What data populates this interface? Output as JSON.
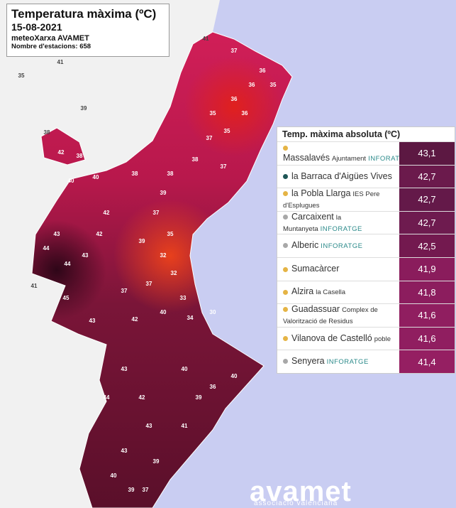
{
  "header": {
    "title": "Temperatura màxima (ºC)",
    "date": "15-08-2021",
    "network": "meteoXarxa AVAMET",
    "stations": "Nombre d'estacions: 658"
  },
  "ranking": {
    "title": "Temp. màxima absoluta (ºC)",
    "rows": [
      {
        "name": "Massalavés",
        "detail": "Ajuntament",
        "badge": "INFORATGE",
        "value": "43,1",
        "dot_color": "#e5b445"
      },
      {
        "name": "la Barraca d'Aigües Vives",
        "value": "42,7",
        "dot_color": "#1e5656"
      },
      {
        "name": "la Pobla Llarga",
        "detail": "IES Pere d'Esplugues",
        "value": "42,7",
        "dot_color": "#e5b445"
      },
      {
        "name": "Carcaixent",
        "detail": "la Muntanyeta",
        "badge": "INFORATGE",
        "value": "42,7",
        "dot_color": "#a8a8a8"
      },
      {
        "name": "Alberic",
        "badge": "INFORATGE",
        "value": "42,5",
        "dot_color": "#a8a8a8"
      },
      {
        "name": "Sumacàrcer",
        "value": "41,9",
        "dot_color": "#e5b445"
      },
      {
        "name": "Alzira",
        "detail": "la Casella",
        "value": "41,8",
        "dot_color": "#e5b445"
      },
      {
        "name": "Guadassuar",
        "detail": "Complex de Valorització de Residus",
        "value": "41,6",
        "dot_color": "#e5b445"
      },
      {
        "name": "Vilanova de Castelló",
        "detail": "poble",
        "value": "41,6",
        "dot_color": "#e5b445"
      },
      {
        "name": "Senyera",
        "badge": "INFORATGE",
        "value": "41,4",
        "dot_color": "#a8a8a8"
      }
    ]
  },
  "map": {
    "labels": [
      "35",
      "41",
      "39",
      "38",
      "41",
      "41",
      "42",
      "38",
      "37",
      "36",
      "36",
      "35",
      "36",
      "35",
      "36",
      "35",
      "37",
      "38",
      "37",
      "38",
      "38",
      "40",
      "40",
      "43",
      "44",
      "43",
      "44",
      "45",
      "43",
      "42",
      "42",
      "39",
      "37",
      "35",
      "39",
      "32",
      "32",
      "37",
      "37",
      "33",
      "42",
      "34",
      "40",
      "30",
      "43",
      "44",
      "42",
      "40",
      "39",
      "40",
      "43",
      "43",
      "40",
      "39",
      "39",
      "37",
      "41",
      "36"
    ]
  },
  "logo": {
    "name": "avamet",
    "tagline": "associació valenciana"
  }
}
